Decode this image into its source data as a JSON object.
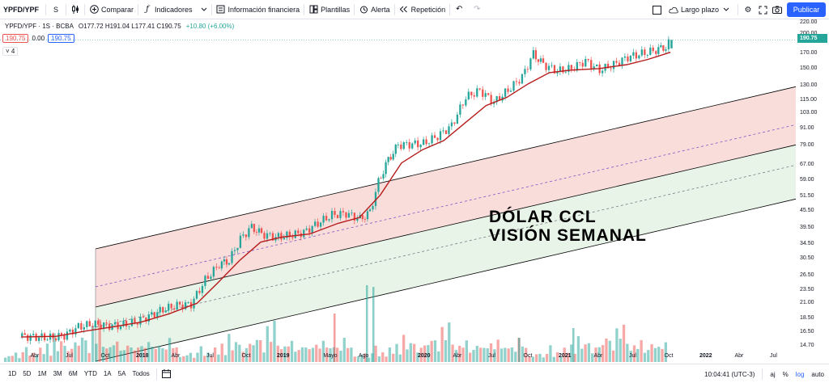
{
  "toolbar": {
    "symbol": "YPFD/YPF",
    "interval": "S",
    "compare_label": "Comparar",
    "indicators_label": "Indicadores",
    "financials_label": "Información financiera",
    "templates_label": "Plantillas",
    "alert_label": "Alerta",
    "replay_label": "Repetición",
    "layout_label": "Largo plazo",
    "publish_label": "Publicar"
  },
  "legend": {
    "title": "YPFD/YPF · 1S · BCBA",
    "ohlc": "O177.72 H191.04 L177.41 C190.75",
    "change": "+10.80 (+6.00%)",
    "bid": "190.75",
    "spread": "0.00",
    "ask": "190.75",
    "collapse_count": "4"
  },
  "watermark": {
    "line1": "DÓLAR CCL",
    "line2": "VISIÓN SEMANAL"
  },
  "price_axis": {
    "current_price": "190.75",
    "ticks": [
      "220.00",
      "200.00",
      "170.00",
      "150.00",
      "130.00",
      "115.00",
      "103.00",
      "91.00",
      "79.00",
      "67.00",
      "59.00",
      "51.50",
      "45.50",
      "39.50",
      "34.50",
      "30.50",
      "26.50",
      "23.50",
      "21.00",
      "18.50",
      "16.50",
      "14.70"
    ]
  },
  "time_axis": {
    "labels": [
      "Abr",
      "Jul",
      "Oct",
      "2018",
      "Abr",
      "Jul",
      "Oct",
      "2019",
      "Mayo",
      "Ago",
      "2020",
      "Abr",
      "Jul",
      "Oct",
      "2021",
      "Abr",
      "Jul",
      "Oct",
      "2022",
      "Abr",
      "Jul"
    ],
    "years": [
      "2018",
      "2019",
      "2020",
      "2021",
      "2022"
    ]
  },
  "bottom": {
    "ranges": [
      "1D",
      "5D",
      "1M",
      "3M",
      "6M",
      "YTD",
      "1A",
      "5A",
      "Todos"
    ],
    "clock": "10:04:41 (UTC-3)",
    "pct_label": "%",
    "log_label": "log",
    "auto_label": "auto",
    "adj_label": "aj"
  },
  "colors": {
    "up": "#26a69a",
    "down": "#ef5350",
    "ma": "#b71c1c",
    "channel_red": "#f8d7d5",
    "channel_green": "#e4f2e4",
    "accent": "#2962ff"
  },
  "chart_data": {
    "type": "candlestick",
    "scale": "log",
    "ylim": [
      14.0,
      225.0
    ],
    "price_ticks": [
      220,
      200,
      170,
      150,
      130,
      115,
      103,
      91,
      79,
      67,
      59,
      51.5,
      45.5,
      39.5,
      34.5,
      30.5,
      26.5,
      23.5,
      21,
      18.5,
      16.5,
      14.7
    ],
    "weekly_close": [
      [
        2017.15,
        15.9
      ],
      [
        2017.25,
        15.8
      ],
      [
        2017.35,
        15.7
      ],
      [
        2017.45,
        16.0
      ],
      [
        2017.55,
        17.2
      ],
      [
        2017.65,
        17.6
      ],
      [
        2017.75,
        17.4
      ],
      [
        2017.85,
        17.4
      ],
      [
        2017.95,
        17.9
      ],
      [
        2018.05,
        18.8
      ],
      [
        2018.15,
        19.9
      ],
      [
        2018.25,
        20.6
      ],
      [
        2018.35,
        20.8
      ],
      [
        2018.45,
        25.5
      ],
      [
        2018.55,
        29.0
      ],
      [
        2018.62,
        30.0
      ],
      [
        2018.7,
        36.0
      ],
      [
        2018.78,
        39.8
      ],
      [
        2018.85,
        37.5
      ],
      [
        2018.95,
        36.5
      ],
      [
        2019.05,
        37.0
      ],
      [
        2019.15,
        38.0
      ],
      [
        2019.25,
        41.0
      ],
      [
        2019.35,
        44.0
      ],
      [
        2019.45,
        44.5
      ],
      [
        2019.55,
        42.5
      ],
      [
        2019.62,
        45.0
      ],
      [
        2019.68,
        58.0
      ],
      [
        2019.75,
        70.0
      ],
      [
        2019.82,
        79.0
      ],
      [
        2019.9,
        79.5
      ],
      [
        2020.0,
        80.0
      ],
      [
        2020.1,
        85.0
      ],
      [
        2020.2,
        93.0
      ],
      [
        2020.3,
        118.0
      ],
      [
        2020.4,
        125.0
      ],
      [
        2020.5,
        113.0
      ],
      [
        2020.6,
        125.0
      ],
      [
        2020.7,
        140.0
      ],
      [
        2020.78,
        170.0
      ],
      [
        2020.85,
        155.0
      ],
      [
        2020.95,
        147.0
      ],
      [
        2021.05,
        150.0
      ],
      [
        2021.15,
        160.0
      ],
      [
        2021.25,
        148.0
      ],
      [
        2021.35,
        155.0
      ],
      [
        2021.45,
        165.0
      ],
      [
        2021.55,
        170.0
      ],
      [
        2021.65,
        175.0
      ],
      [
        2021.72,
        179.9
      ],
      [
        2021.76,
        190.75
      ]
    ],
    "moving_average": [
      [
        2017.15,
        15.8
      ],
      [
        2017.4,
        15.9
      ],
      [
        2017.6,
        16.6
      ],
      [
        2017.8,
        17.2
      ],
      [
        2018.0,
        17.9
      ],
      [
        2018.2,
        19.2
      ],
      [
        2018.4,
        21.0
      ],
      [
        2018.55,
        25.0
      ],
      [
        2018.7,
        30.0
      ],
      [
        2018.85,
        35.0
      ],
      [
        2019.0,
        36.5
      ],
      [
        2019.2,
        37.5
      ],
      [
        2019.4,
        41.0
      ],
      [
        2019.55,
        43.0
      ],
      [
        2019.7,
        52.0
      ],
      [
        2019.85,
        68.0
      ],
      [
        2020.0,
        76.0
      ],
      [
        2020.15,
        82.0
      ],
      [
        2020.3,
        95.0
      ],
      [
        2020.45,
        110.0
      ],
      [
        2020.6,
        118.0
      ],
      [
        2020.75,
        132.0
      ],
      [
        2020.9,
        145.0
      ],
      [
        2021.05,
        148.0
      ],
      [
        2021.25,
        150.0
      ],
      [
        2021.45,
        155.0
      ],
      [
        2021.6,
        162.0
      ],
      [
        2021.76,
        172.0
      ]
    ],
    "volume_relative": [
      0.15,
      0.12,
      0.18,
      0.2,
      0.1,
      0.22,
      0.35,
      0.16,
      0.2,
      0.18,
      0.3,
      0.25,
      0.38,
      0.2,
      0.6,
      0.3,
      0.45,
      0.4,
      0.25,
      0.3,
      0.5,
      0.35,
      0.7,
      0.45,
      0.3,
      0.75,
      0.55,
      0.9,
      0.4,
      0.3,
      0.35,
      0.4,
      0.45,
      0.3,
      0.25,
      0.5,
      0.3,
      0.38,
      0.3,
      0.45,
      0.3,
      0.5,
      0.35,
      0.3,
      0.4,
      0.3,
      0.35,
      0.5,
      0.45,
      0.3
    ]
  }
}
